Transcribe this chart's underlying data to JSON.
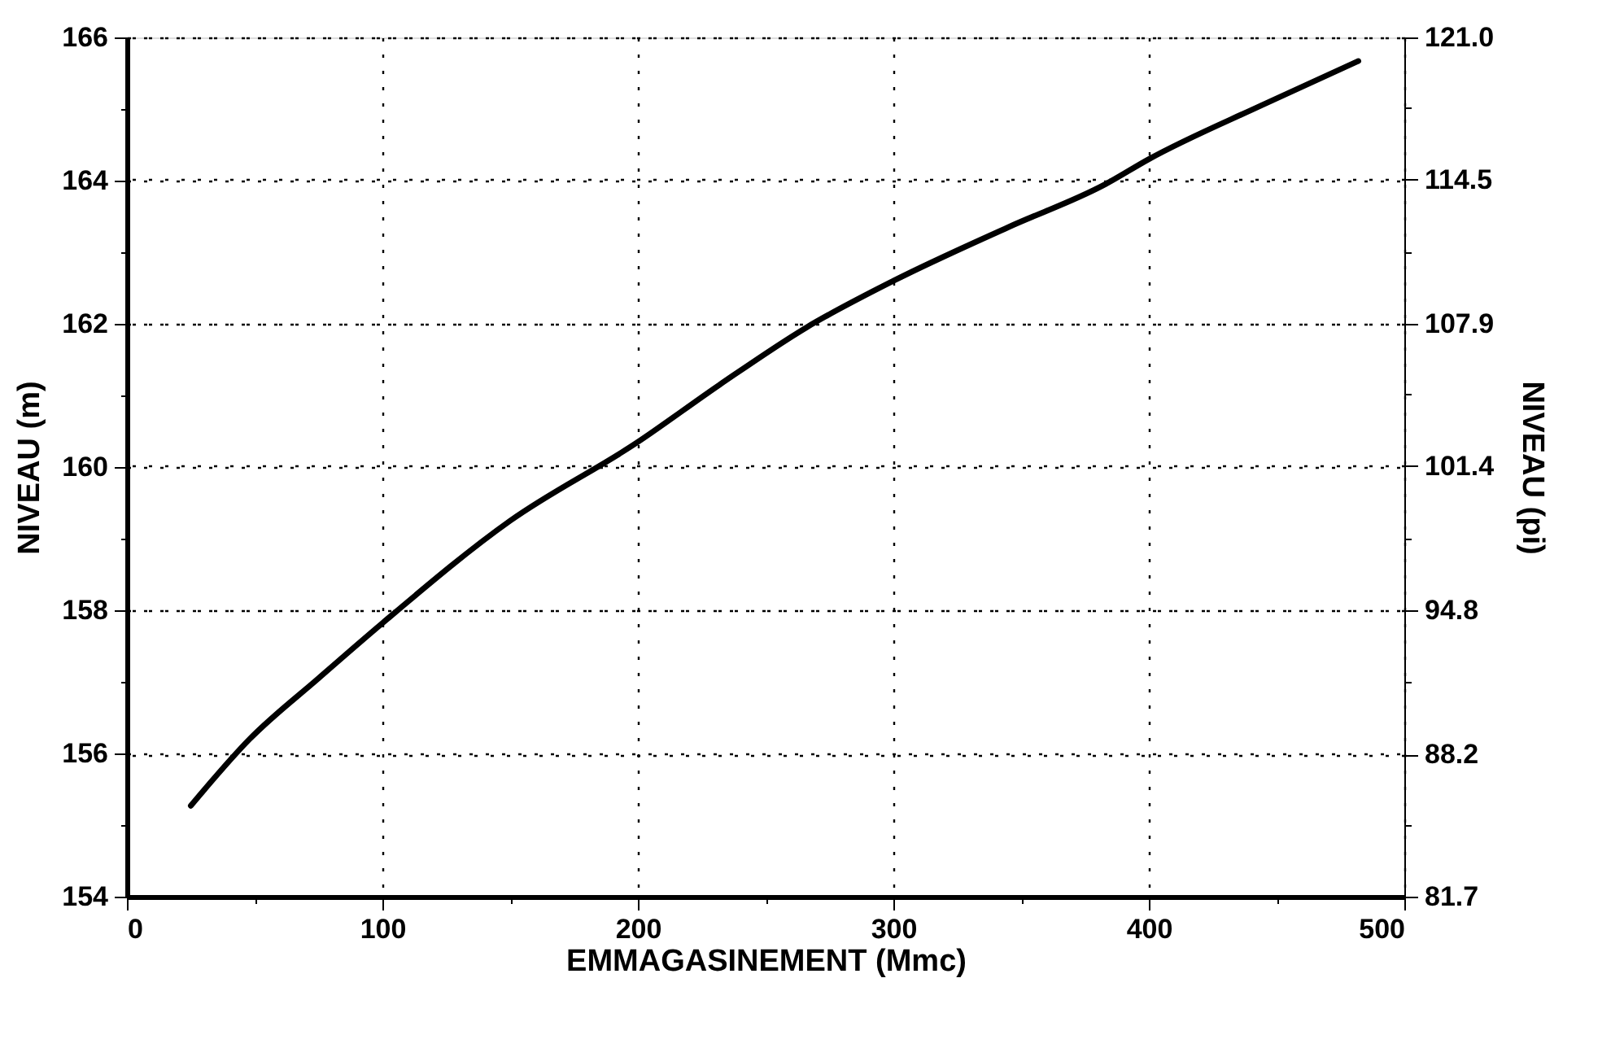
{
  "chart_data": {
    "type": "line",
    "xlabel": "EMMAGASINEMENT (Mmc)",
    "ylabel": "NIVEAU (m)",
    "y2label": "NIVEAU (pi)",
    "series": [
      {
        "color": "#000000",
        "x": [
          25,
          48,
          75,
          100,
          150,
          200,
          232,
          266,
          300,
          345,
          383,
          400,
          444,
          482
        ],
        "values": [
          155.27,
          156.2,
          157.05,
          157.82,
          159.25,
          160.35,
          161.15,
          161.95,
          162.6,
          163.35,
          163.95,
          164.3,
          165.05,
          165.67
        ]
      }
    ],
    "xlim": [
      0,
      500
    ],
    "ylim": [
      154,
      166
    ],
    "y2lim": [
      81.7,
      121.0
    ],
    "xticks": [
      0,
      {
        "value": 50,
        "label": null
      },
      100,
      {
        "value": 150,
        "label": null
      },
      200,
      {
        "value": 250,
        "label": null
      },
      300,
      {
        "value": 350,
        "label": null
      },
      400,
      {
        "value": 450,
        "label": null
      },
      500
    ],
    "yticks": [
      154,
      {
        "value": 155,
        "label": null
      },
      156,
      {
        "value": 157,
        "label": null
      },
      158,
      {
        "value": 159,
        "label": null
      },
      160,
      {
        "value": 161,
        "label": null
      },
      162,
      {
        "value": 163,
        "label": null
      },
      164,
      {
        "value": 165,
        "label": null
      },
      166
    ],
    "y2ticks": [
      81.7,
      {
        "value": 85.0,
        "label": null
      },
      88.2,
      {
        "value": 91.5,
        "label": null
      },
      94.8,
      {
        "value": 98.1,
        "label": null
      },
      101.4,
      {
        "value": 104.7,
        "label": null
      },
      107.9,
      {
        "value": 111.2,
        "label": null
      },
      114.5,
      {
        "value": 117.8,
        "label": null
      },
      {
        "value": 121.0,
        "label": "121.0"
      }
    ],
    "grid": true,
    "marker": "none",
    "line_style": "solid"
  }
}
